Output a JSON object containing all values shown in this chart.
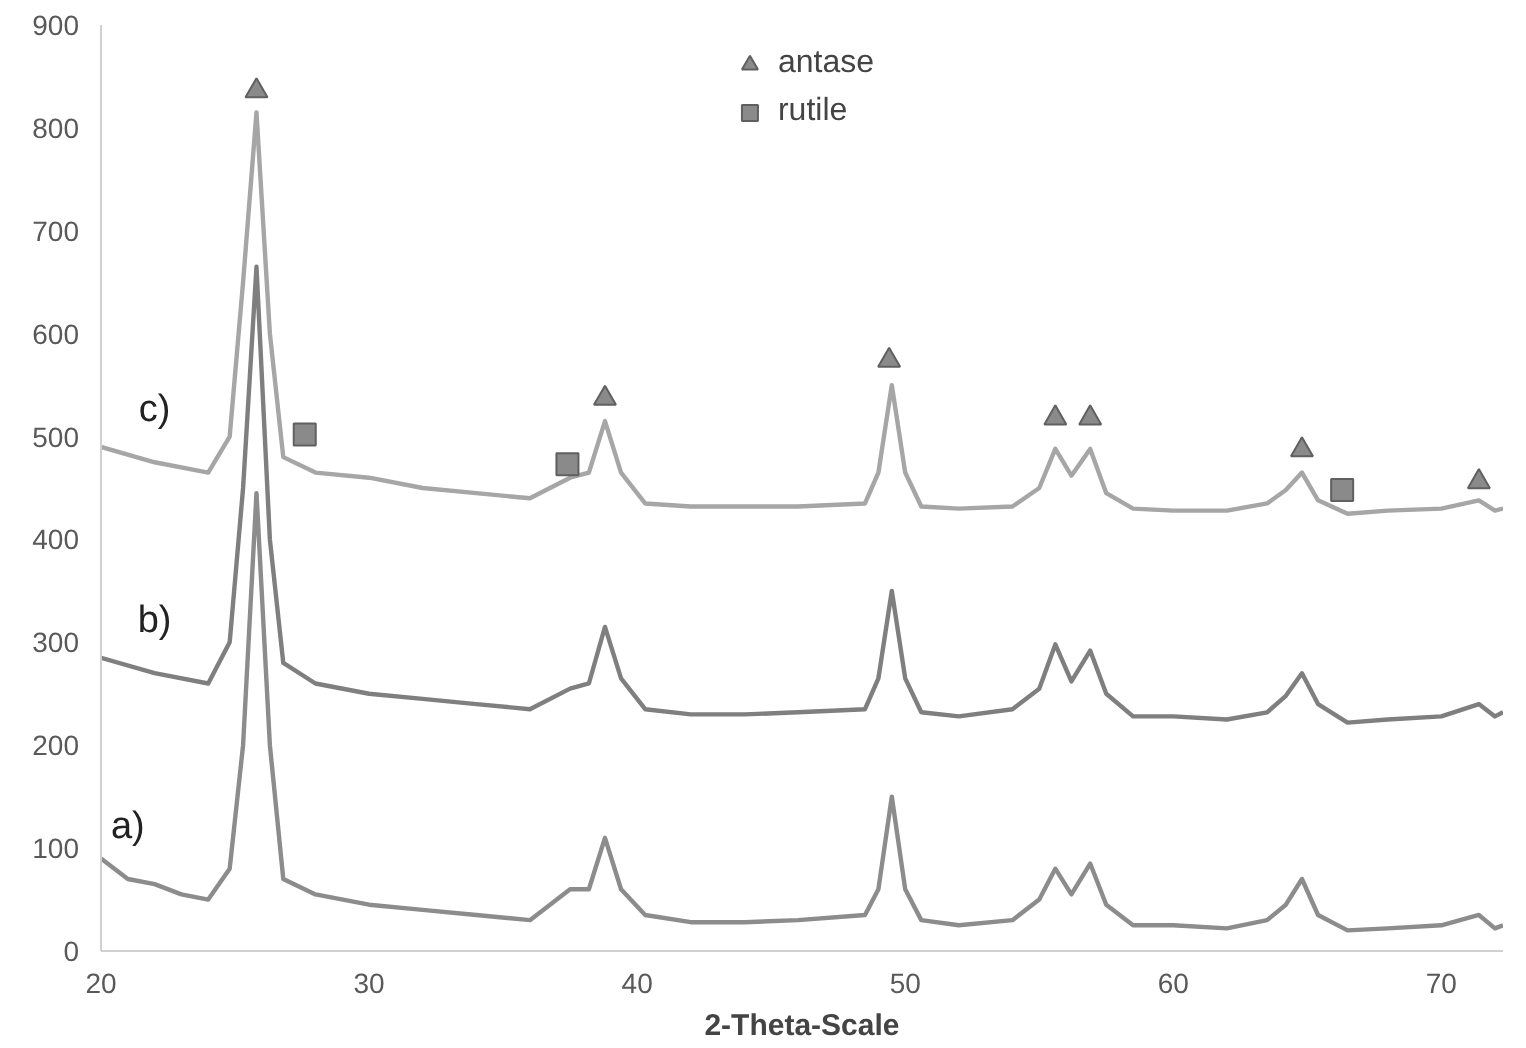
{
  "chart_data": {
    "type": "line",
    "xlabel": "2-Theta-Scale",
    "xlim": [
      20,
      72.3
    ],
    "ylim": [
      0,
      900
    ],
    "xticks": [
      20,
      30,
      40,
      50,
      60,
      70
    ],
    "yticks": [
      0,
      100,
      200,
      300,
      400,
      500,
      600,
      700,
      800,
      900
    ],
    "grid": false,
    "legend": "top",
    "marker": "none",
    "line_style": "solid",
    "series": [
      {
        "name": "a)",
        "color": "#8c8c8c",
        "x": [
          20,
          21,
          22,
          23,
          24,
          24.8,
          25.3,
          25.8,
          26.3,
          26.8,
          28,
          30,
          32,
          34,
          36,
          37.5,
          38.2,
          38.8,
          39.4,
          40.3,
          42,
          44,
          46,
          48.5,
          49,
          49.5,
          50,
          50.6,
          52,
          54,
          55,
          55.6,
          56.2,
          56.9,
          57.5,
          58.5,
          60,
          62,
          63.5,
          64.2,
          64.8,
          65.4,
          66.5,
          68,
          70,
          71.4,
          72,
          72.3
        ],
        "values": [
          90,
          70,
          65,
          55,
          50,
          80,
          200,
          445,
          200,
          70,
          55,
          45,
          40,
          35,
          30,
          60,
          60,
          110,
          60,
          35,
          28,
          28,
          30,
          35,
          60,
          150,
          60,
          30,
          25,
          30,
          50,
          80,
          55,
          85,
          45,
          25,
          25,
          22,
          30,
          45,
          70,
          35,
          20,
          22,
          25,
          35,
          22,
          25
        ]
      },
      {
        "name": "b)",
        "color": "#7f7f7f",
        "x": [
          20,
          22,
          24,
          24.8,
          25.3,
          25.8,
          26.3,
          26.8,
          28,
          30,
          32,
          34,
          36,
          37.5,
          38.2,
          38.8,
          39.4,
          40.3,
          42,
          44,
          46,
          48.5,
          49,
          49.5,
          50,
          50.6,
          52,
          54,
          55,
          55.6,
          56.2,
          56.9,
          57.5,
          58.5,
          60,
          62,
          63.5,
          64.2,
          64.8,
          65.4,
          66.5,
          68,
          70,
          71.4,
          72,
          72.3
        ],
        "values": [
          285,
          270,
          260,
          300,
          450,
          665,
          400,
          280,
          260,
          250,
          245,
          240,
          235,
          255,
          260,
          315,
          265,
          235,
          230,
          230,
          232,
          235,
          265,
          350,
          265,
          232,
          228,
          235,
          255,
          298,
          262,
          292,
          250,
          228,
          228,
          225,
          232,
          248,
          270,
          240,
          222,
          225,
          228,
          240,
          228,
          232
        ]
      },
      {
        "name": "c)",
        "color": "#a6a6a6",
        "x": [
          20,
          22,
          24,
          24.8,
          25.3,
          25.8,
          26.3,
          26.8,
          28,
          30,
          32,
          34,
          36,
          37.5,
          38.2,
          38.8,
          39.4,
          40.3,
          42,
          44,
          46,
          48.5,
          49,
          49.5,
          50,
          50.6,
          52,
          54,
          55,
          55.6,
          56.2,
          56.9,
          57.5,
          58.5,
          60,
          62,
          63.5,
          64.2,
          64.8,
          65.4,
          66.5,
          68,
          70,
          71.4,
          72,
          72.3
        ],
        "values": [
          490,
          475,
          465,
          500,
          650,
          815,
          600,
          480,
          465,
          460,
          450,
          445,
          440,
          460,
          465,
          515,
          465,
          435,
          432,
          432,
          432,
          435,
          465,
          550,
          465,
          432,
          430,
          432,
          450,
          488,
          462,
          488,
          445,
          430,
          428,
          428,
          435,
          448,
          465,
          438,
          425,
          428,
          430,
          438,
          428,
          430
        ]
      },
      {
        "type": "scatter",
        "name": "antase",
        "marker": "triangle",
        "color": "#8a8a8a",
        "x": [
          25.8,
          38.8,
          49.4,
          55.6,
          56.9,
          64.8,
          71.4
        ],
        "values": [
          836,
          537,
          574,
          518,
          518,
          487,
          456
        ]
      },
      {
        "type": "scatter",
        "name": "rutile",
        "marker": "square",
        "color": "#8a8a8a",
        "x": [
          27.6,
          37.4,
          66.3
        ],
        "values": [
          502,
          473,
          448
        ]
      }
    ]
  }
}
